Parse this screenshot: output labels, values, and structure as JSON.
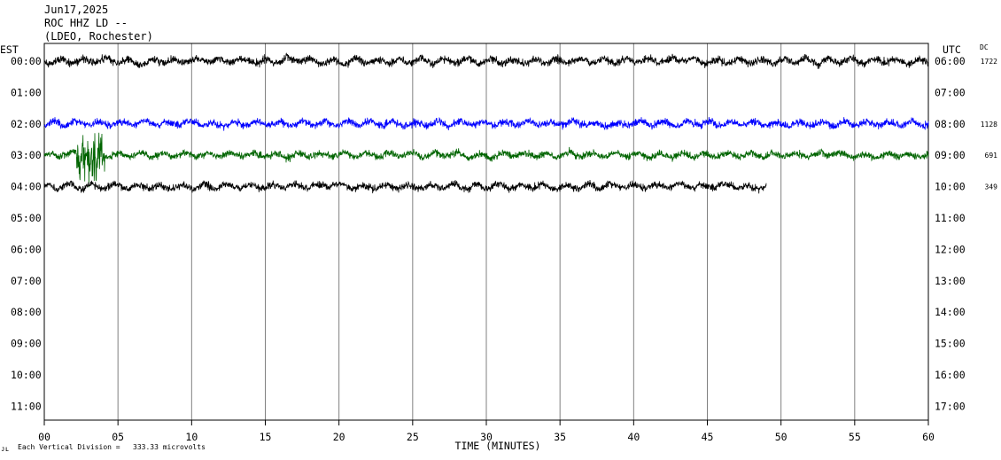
{
  "header": {
    "date": "Jun17,2025",
    "station": "ROC HHZ LD --",
    "network": "(LDEO, Rochester)"
  },
  "left_axis_title": "EST",
  "right_axis_title": "UTC",
  "dc_title": "DC",
  "footer": {
    "note": "Each Vertical Division =",
    "value": "333.33 microvolts",
    "mark": "ᴊʟ"
  },
  "chart_data": {
    "type": "line",
    "title": "",
    "xlabel": "TIME (MINUTES)",
    "ylabel": "",
    "xlim": [
      0,
      60
    ],
    "x_ticks": [
      "00",
      "05",
      "10",
      "15",
      "20",
      "25",
      "30",
      "35",
      "40",
      "45",
      "50",
      "55",
      "60"
    ],
    "rows_est": [
      "00:00",
      "01:00",
      "02:00",
      "03:00",
      "04:00",
      "05:00",
      "06:00",
      "07:00",
      "08:00",
      "09:00",
      "10:00",
      "11:00"
    ],
    "rows_utc": [
      "06:00",
      "07:00",
      "08:00",
      "09:00",
      "10:00",
      "11:00",
      "12:00",
      "13:00",
      "14:00",
      "15:00",
      "16:00",
      "17:00"
    ],
    "grid": true,
    "traces": [
      {
        "row": 0,
        "dc": "1722",
        "color": "#000000",
        "end_minute": 60,
        "amplitude": 0.38
      },
      {
        "row": 1,
        "dc": "",
        "color": "#ff0000",
        "end_minute": 0,
        "amplitude": 0
      },
      {
        "row": 2,
        "dc": "1128",
        "color": "#0000ff",
        "end_minute": 60,
        "amplitude": 0.36
      },
      {
        "row": 3,
        "dc": "691",
        "color": "#006400",
        "end_minute": 60,
        "amplitude": 0.34,
        "event_start_minute": 2.2,
        "event_end_minute": 4.1
      },
      {
        "row": 4,
        "dc": "349",
        "color": "#000000",
        "end_minute": 49,
        "amplitude": 0.36
      }
    ]
  }
}
